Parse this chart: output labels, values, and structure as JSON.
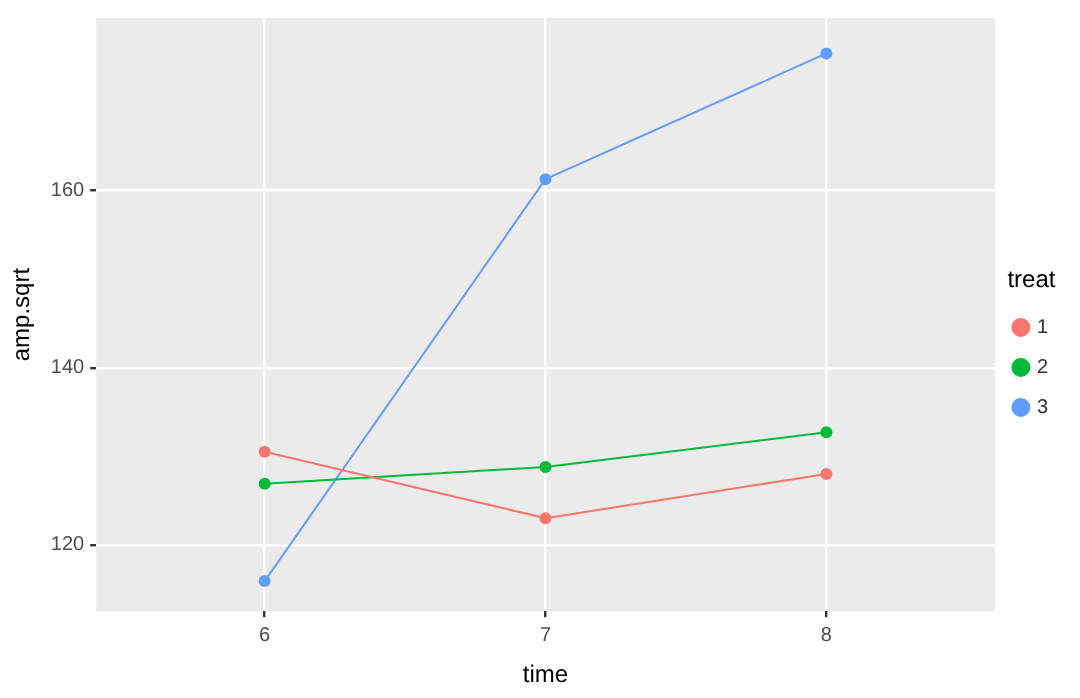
{
  "chart_data": {
    "type": "line",
    "xlabel": "time",
    "ylabel": "amp.sqrt",
    "legend_title": "treat",
    "x": [
      6,
      7,
      8
    ],
    "xlim": [
      5.4,
      8.6
    ],
    "xticks": [
      6,
      7,
      8
    ],
    "ylim": [
      112.5,
      179.5
    ],
    "yticks": [
      120,
      140,
      160
    ],
    "grid": true,
    "legend": "right",
    "marker": "circle",
    "series": [
      {
        "name": "1",
        "color": "#f8766d",
        "values": [
          130.5,
          123,
          128
        ]
      },
      {
        "name": "2",
        "color": "#00ba38",
        "values": [
          126.9,
          128.8,
          132.7
        ]
      },
      {
        "name": "3",
        "color": "#619cff",
        "values": [
          115.9,
          161.3,
          175.5
        ]
      }
    ]
  }
}
